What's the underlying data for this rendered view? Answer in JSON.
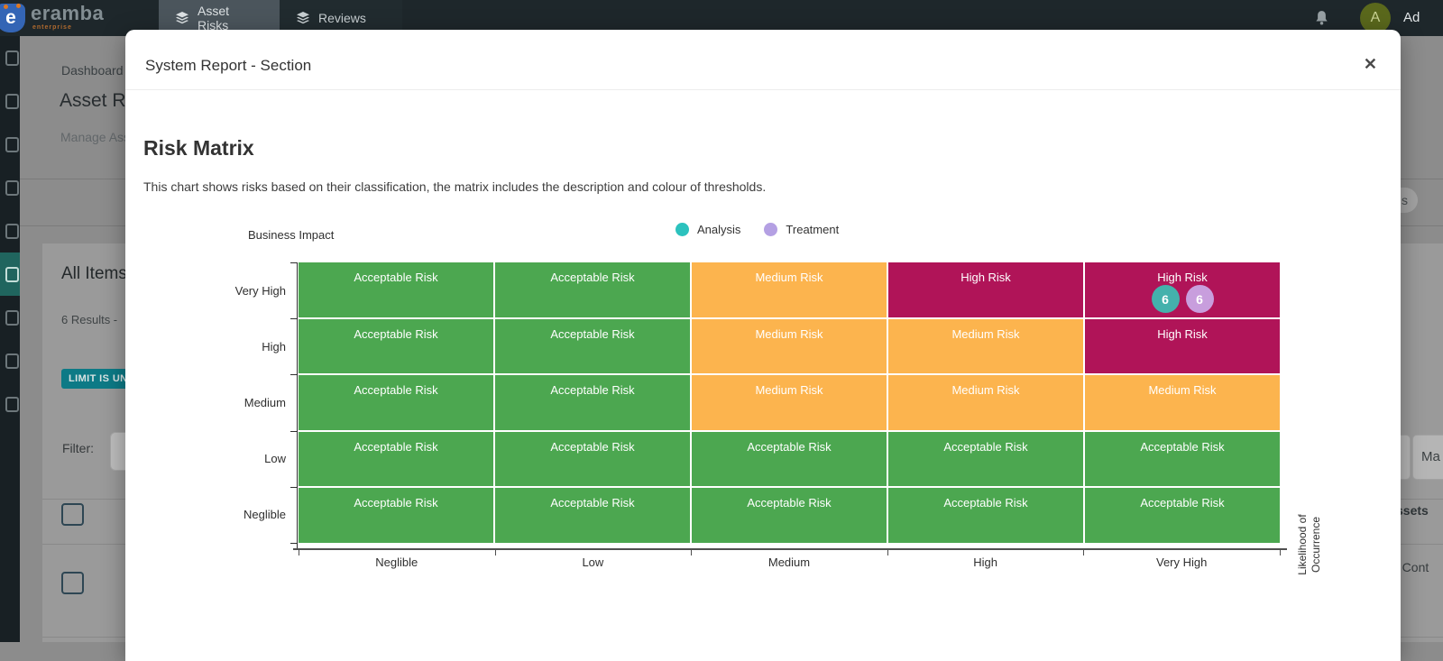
{
  "navbar": {
    "brand": "eramba",
    "brand_sub": "enterprise",
    "tabs": [
      {
        "label": "Asset Risks",
        "active": true
      },
      {
        "label": "Reviews",
        "active": false
      }
    ],
    "user": {
      "initial": "A",
      "name": "Ad"
    }
  },
  "sidebar": {
    "items": [
      {
        "name": "sidebar-item-1",
        "active": false
      },
      {
        "name": "sidebar-item-2",
        "active": false
      },
      {
        "name": "sidebar-item-3",
        "active": false
      },
      {
        "name": "sidebar-item-4",
        "active": false
      },
      {
        "name": "sidebar-item-5",
        "active": false
      },
      {
        "name": "sidebar-item-6",
        "active": true
      },
      {
        "name": "sidebar-item-7",
        "active": false
      },
      {
        "name": "sidebar-item-8",
        "active": false
      },
      {
        "name": "sidebar-item-9",
        "active": false
      }
    ]
  },
  "background_page": {
    "breadcrumb": "Dashboard /",
    "page_title": "Asset Risk",
    "page_subtitle": "Manage Asset",
    "card_title": "All Items",
    "results_text": "6 Results -",
    "limit_badge": "LIMIT IS UN",
    "filter_label": "Filter:",
    "fragments": {
      "pill_text": "s",
      "button_text": "Ma",
      "column_header": "ssets",
      "row_text": "d Cont"
    }
  },
  "modal": {
    "title": "System Report - Section",
    "close_glyph": "✕",
    "heading": "Risk Matrix",
    "description": "This chart shows risks based on their classification, the matrix includes the description and colour of thresholds."
  },
  "colors": {
    "acceptable_risk": "#4ca750",
    "medium_risk": "#fcb44e",
    "high_risk": "#b01458",
    "analysis_accent": "#2cc2be",
    "treatment_accent": "#b4a0e3",
    "limit_badge_teal": "#0d7a86",
    "active_sidebar_teal": "#20655e"
  },
  "chart_data": {
    "type": "heatmap",
    "title": "Risk Matrix",
    "xlabel": "Likelihood of Occurrence",
    "ylabel": "Business Impact",
    "x_categories": [
      "Neglible",
      "Low",
      "Medium",
      "High",
      "Very High"
    ],
    "y_categories": [
      "Very High",
      "High",
      "Medium",
      "Low",
      "Neglible"
    ],
    "legend": [
      {
        "label": "Analysis",
        "color": "#2cc2be"
      },
      {
        "label": "Treatment",
        "color": "#b4a0e3"
      }
    ],
    "thresholds": [
      {
        "label": "Acceptable Risk",
        "color": "#4ca750"
      },
      {
        "label": "Medium Risk",
        "color": "#fcb44e"
      },
      {
        "label": "High Risk",
        "color": "#b01458"
      }
    ],
    "cells": [
      [
        {
          "label": "Acceptable Risk",
          "color": "#4ca750"
        },
        {
          "label": "Acceptable Risk",
          "color": "#4ca750"
        },
        {
          "label": "Medium Risk",
          "color": "#fcb44e"
        },
        {
          "label": "High Risk",
          "color": "#b01458"
        },
        {
          "label": "High Risk",
          "color": "#b01458",
          "badges": [
            {
              "series": "Analysis",
              "count": "6",
              "color": "#44b1ac"
            },
            {
              "series": "Treatment",
              "count": "6",
              "color": "#c89edd"
            }
          ]
        }
      ],
      [
        {
          "label": "Acceptable Risk",
          "color": "#4ca750"
        },
        {
          "label": "Acceptable Risk",
          "color": "#4ca750"
        },
        {
          "label": "Medium Risk",
          "color": "#fcb44e"
        },
        {
          "label": "Medium Risk",
          "color": "#fcb44e"
        },
        {
          "label": "High Risk",
          "color": "#b01458"
        }
      ],
      [
        {
          "label": "Acceptable Risk",
          "color": "#4ca750"
        },
        {
          "label": "Acceptable Risk",
          "color": "#4ca750"
        },
        {
          "label": "Medium Risk",
          "color": "#fcb44e"
        },
        {
          "label": "Medium Risk",
          "color": "#fcb44e"
        },
        {
          "label": "Medium Risk",
          "color": "#fcb44e"
        }
      ],
      [
        {
          "label": "Acceptable Risk",
          "color": "#4ca750"
        },
        {
          "label": "Acceptable Risk",
          "color": "#4ca750"
        },
        {
          "label": "Acceptable Risk",
          "color": "#4ca750"
        },
        {
          "label": "Acceptable Risk",
          "color": "#4ca750"
        },
        {
          "label": "Acceptable Risk",
          "color": "#4ca750"
        }
      ],
      [
        {
          "label": "Acceptable Risk",
          "color": "#4ca750"
        },
        {
          "label": "Acceptable Risk",
          "color": "#4ca750"
        },
        {
          "label": "Acceptable Risk",
          "color": "#4ca750"
        },
        {
          "label": "Acceptable Risk",
          "color": "#4ca750"
        },
        {
          "label": "Acceptable Risk",
          "color": "#4ca750"
        }
      ]
    ]
  }
}
